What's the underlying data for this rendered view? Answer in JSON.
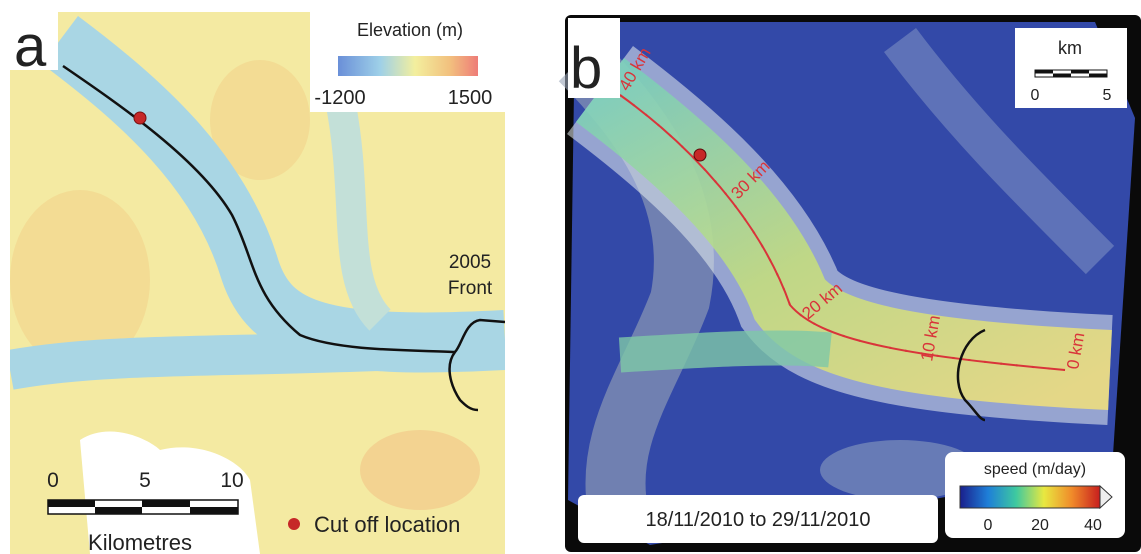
{
  "panel_a": {
    "label": "a",
    "legend": {
      "title": "Elevation (m)",
      "min": "-1200",
      "max": "1500"
    },
    "front_label": [
      "2005",
      "Front"
    ],
    "scale_bar": {
      "ticks": [
        "0",
        "5",
        "10"
      ],
      "unit": "Kilometres"
    },
    "marker_legend": "Cut off location"
  },
  "panel_b": {
    "label": "b",
    "distance_labels": [
      "40 km",
      "30 km",
      "20 km",
      "10 km",
      "0 km"
    ],
    "scale_bar": {
      "unit": "km",
      "ticks": [
        "0",
        "5"
      ]
    },
    "colorbar": {
      "title": "speed (m/day)",
      "ticks": [
        "0",
        "20",
        "40"
      ]
    },
    "date_range": "18/11/2010 to 29/11/2010"
  }
}
